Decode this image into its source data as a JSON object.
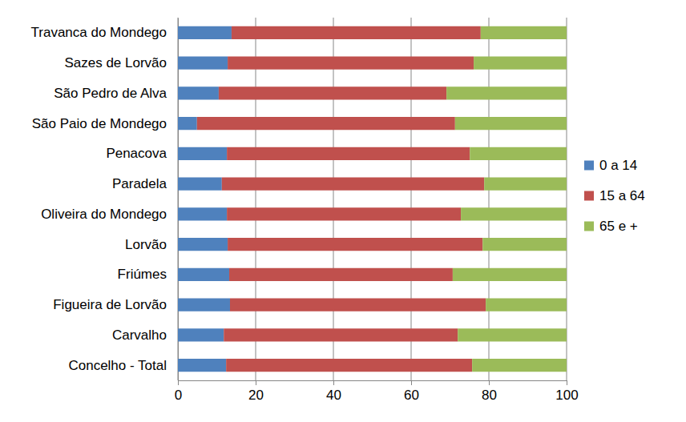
{
  "chart_data": {
    "type": "bar",
    "orientation": "horizontal",
    "stacked": true,
    "grid": true,
    "legend": "right",
    "categories": [
      "Travanca do Mondego",
      "Sazes de Lorvão",
      "São Pedro de Alva",
      "São Paio de Mondego",
      "Penacova",
      "Paradela",
      "Oliveira do Mondego",
      "Lorvão",
      "Friúmes",
      "Figueira de Lorvão",
      "Carvalho",
      "Concelho - Total"
    ],
    "series": [
      {
        "name": "0 a 14",
        "color": "#4f81bd",
        "values": [
          13.8,
          12.8,
          10.5,
          4.9,
          12.6,
          11.3,
          12.6,
          12.8,
          13.2,
          13.4,
          11.8,
          12.4
        ]
      },
      {
        "name": "15 a 64",
        "color": "#c0504d",
        "values": [
          64.1,
          63.3,
          58.6,
          66.4,
          62.5,
          67.5,
          60.2,
          65.6,
          57.5,
          65.8,
          60.2,
          63.3
        ]
      },
      {
        "name": "65 e +",
        "color": "#9bbb59",
        "values": [
          22.1,
          23.9,
          30.9,
          28.7,
          24.9,
          21.2,
          27.2,
          21.6,
          29.3,
          20.8,
          28.0,
          24.3
        ]
      }
    ],
    "xlim": [
      0,
      100
    ],
    "xticks": [
      0,
      20,
      40,
      60,
      80,
      100
    ]
  }
}
